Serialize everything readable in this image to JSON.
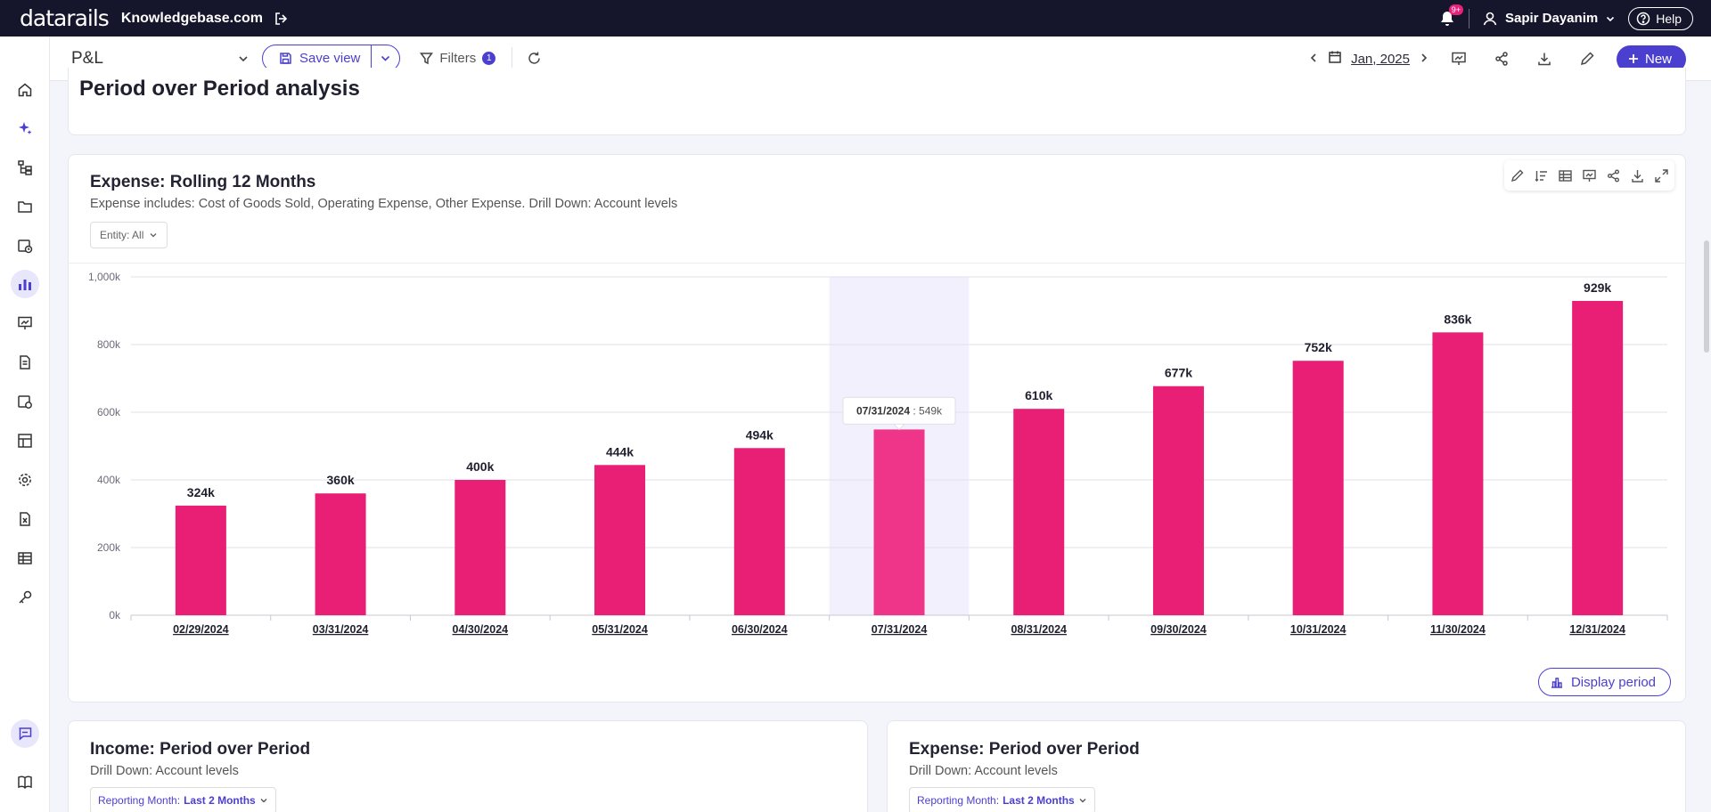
{
  "app": {
    "logo_text": "datarails",
    "company": "Knowledgebase.com",
    "notifications_badge": "9+",
    "user_name": "Sapir Dayanim",
    "help_label": "Help"
  },
  "toolbar": {
    "view_name": "P&L",
    "save_view_label": "Save view",
    "filters_label": "Filters",
    "filters_count": "1",
    "period": "Jan, 2025",
    "new_label": "New"
  },
  "section": {
    "title": "Period over Period analysis"
  },
  "main_card": {
    "title": "Expense: Rolling 12 Months",
    "subtitle": "Expense includes: Cost of Goods Sold, Operating Expense, Other Expense. Drill Down: Account levels",
    "entity_filter": "Entity: All",
    "display_period_label": "Display period",
    "tooltip": {
      "date": "07/31/2024",
      "value": "549k"
    }
  },
  "bottom_cards": [
    {
      "title": "Income: Period over Period",
      "subtitle": "Drill Down: Account levels",
      "filter_prefix": "Reporting Month: ",
      "filter_value": "Last 2 Months"
    },
    {
      "title": "Expense: Period over Period",
      "subtitle": "Drill Down: Account levels",
      "filter_prefix": "Reporting Month: ",
      "filter_value": "Last 2 Months"
    }
  ],
  "colors": {
    "bar": "#e91e75",
    "bar_hover": "#ee3589",
    "accent": "#4b3fd0",
    "topbar": "#15152b"
  },
  "chart_data": {
    "type": "bar",
    "title": "Expense: Rolling 12 Months",
    "categories": [
      "02/29/2024",
      "03/31/2024",
      "04/30/2024",
      "05/31/2024",
      "06/30/2024",
      "07/31/2024",
      "08/31/2024",
      "09/30/2024",
      "10/31/2024",
      "11/30/2024",
      "12/31/2024"
    ],
    "values": [
      324,
      360,
      400,
      444,
      494,
      549,
      610,
      677,
      752,
      836,
      929
    ],
    "data_labels": [
      "324k",
      "360k",
      "400k",
      "444k",
      "494k",
      "",
      "610k",
      "677k",
      "752k",
      "836k",
      "929k"
    ],
    "y_ticks": [
      "0k",
      "200k",
      "400k",
      "600k",
      "800k",
      "1,000k"
    ],
    "ylim": [
      0,
      1000
    ],
    "highlighted_index": 5,
    "grid": true
  }
}
